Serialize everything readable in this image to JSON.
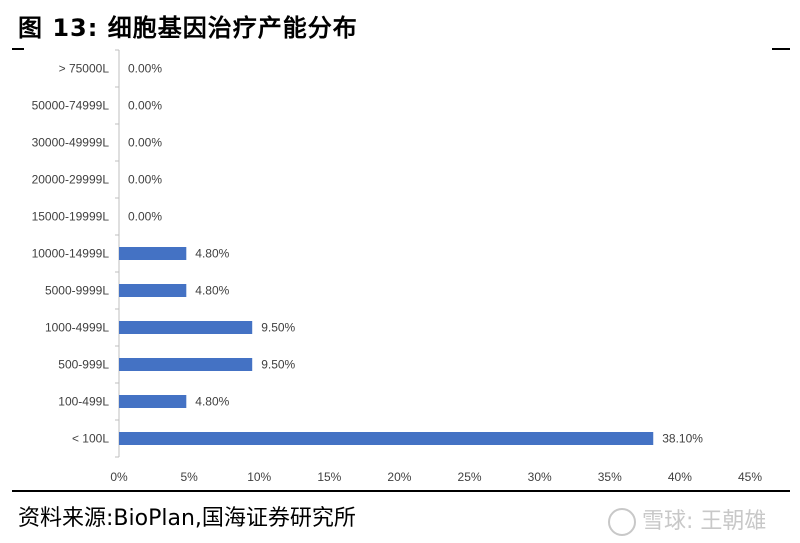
{
  "title": "图 13:  细胞基因治疗产能分布",
  "source": "资料来源:BioPlan,国海证券研究所",
  "watermark": "雪球: 王朝雄",
  "chart_data": {
    "type": "bar",
    "orientation": "horizontal",
    "categories": [
      "> 75000L",
      "50000-74999L",
      "30000-49999L",
      "20000-29999L",
      "15000-19999L",
      "10000-14999L",
      "5000-9999L",
      "1000-4999L",
      "500-999L",
      "100-499L",
      "< 100L"
    ],
    "values": [
      0.0,
      0.0,
      0.0,
      0.0,
      0.0,
      4.8,
      4.8,
      9.5,
      9.5,
      4.8,
      38.1
    ],
    "value_labels": [
      "0.00%",
      "0.00%",
      "0.00%",
      "0.00%",
      "0.00%",
      "4.80%",
      "4.80%",
      "9.50%",
      "9.50%",
      "4.80%",
      "38.10%"
    ],
    "xticks": [
      "0%",
      "5%",
      "10%",
      "15%",
      "20%",
      "25%",
      "30%",
      "35%",
      "40%",
      "45%"
    ],
    "xlim": [
      0,
      45
    ],
    "bar_color": "#4472c4",
    "grid": false,
    "legend": "none"
  }
}
